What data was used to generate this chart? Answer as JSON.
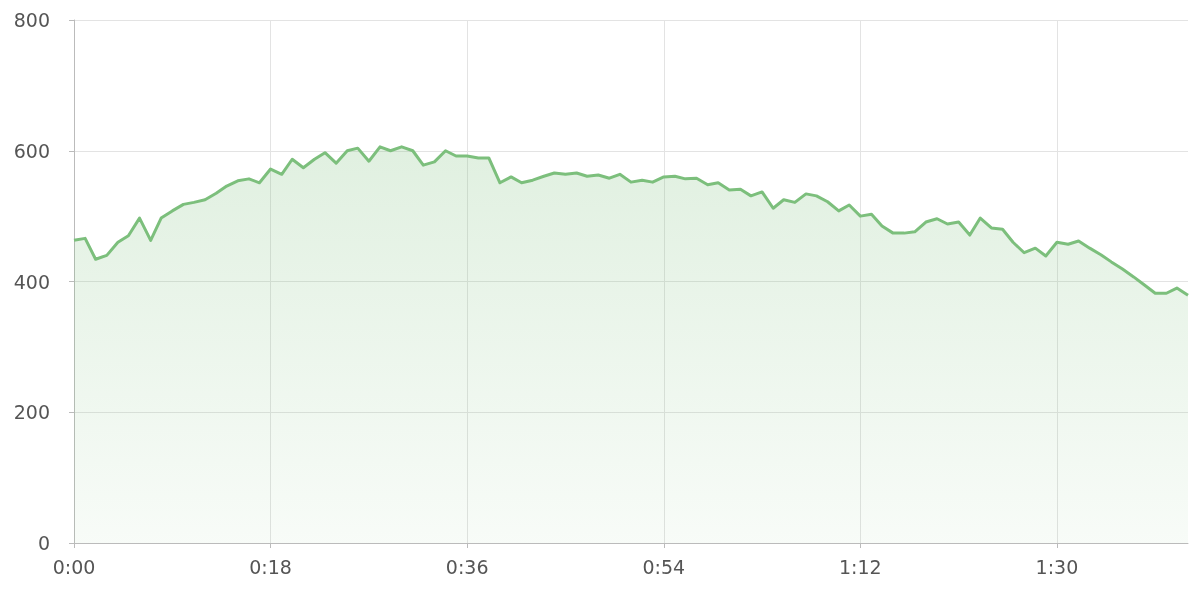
{
  "chart_data": {
    "type": "area",
    "color": "#7cbf7c",
    "marker": "none",
    "grid": true,
    "xlim": [
      0,
      1.7
    ],
    "xticks": [
      {
        "value": 0,
        "label": "0:00"
      },
      {
        "value": 0.3,
        "label": "0:18"
      },
      {
        "value": 0.6,
        "label": "0:36"
      },
      {
        "value": 0.9,
        "label": "0:54"
      },
      {
        "value": 1.2,
        "label": "1:12"
      },
      {
        "value": 1.5,
        "label": "1:30"
      }
    ],
    "ylim": [
      0,
      800
    ],
    "yticks": [
      0,
      200,
      400,
      600,
      800
    ],
    "x": [
      0,
      0.017,
      0.033,
      0.05,
      0.067,
      0.083,
      0.1,
      0.117,
      0.133,
      0.15,
      0.167,
      0.183,
      0.2,
      0.217,
      0.233,
      0.25,
      0.267,
      0.283,
      0.3,
      0.317,
      0.333,
      0.35,
      0.367,
      0.383,
      0.4,
      0.417,
      0.433,
      0.45,
      0.467,
      0.483,
      0.5,
      0.517,
      0.533,
      0.55,
      0.567,
      0.583,
      0.6,
      0.617,
      0.633,
      0.65,
      0.667,
      0.683,
      0.7,
      0.717,
      0.733,
      0.75,
      0.767,
      0.783,
      0.8,
      0.817,
      0.833,
      0.85,
      0.867,
      0.883,
      0.9,
      0.917,
      0.933,
      0.95,
      0.967,
      0.983,
      1.0,
      1.017,
      1.033,
      1.05,
      1.067,
      1.083,
      1.1,
      1.117,
      1.133,
      1.15,
      1.167,
      1.183,
      1.2,
      1.217,
      1.233,
      1.25,
      1.267,
      1.283,
      1.3,
      1.317,
      1.333,
      1.35,
      1.367,
      1.383,
      1.4,
      1.417,
      1.433,
      1.45,
      1.467,
      1.483,
      1.5,
      1.517,
      1.533,
      1.55,
      1.567,
      1.583,
      1.6,
      1.617,
      1.633,
      1.65,
      1.667,
      1.683,
      1.7
    ],
    "values": [
      463,
      466,
      434,
      440,
      460,
      470,
      497,
      463,
      497,
      508,
      518,
      521,
      525,
      535,
      546,
      554,
      557,
      551,
      572,
      564,
      587,
      574,
      587,
      597,
      581,
      600,
      604,
      584,
      606,
      600,
      606,
      600,
      578,
      583,
      600,
      592,
      592,
      589,
      589,
      551,
      560,
      551,
      555,
      561,
      566,
      564,
      566,
      561,
      563,
      558,
      564,
      552,
      555,
      552,
      560,
      561,
      557,
      558,
      548,
      551,
      540,
      541,
      531,
      537,
      512,
      525,
      521,
      534,
      531,
      522,
      508,
      517,
      500,
      503,
      485,
      474,
      474,
      476,
      491,
      496,
      488,
      491,
      471,
      497,
      482,
      480,
      460,
      444,
      451,
      439,
      460,
      457,
      462,
      451,
      441,
      430,
      419,
      407,
      395,
      382,
      382,
      390,
      379
    ]
  }
}
